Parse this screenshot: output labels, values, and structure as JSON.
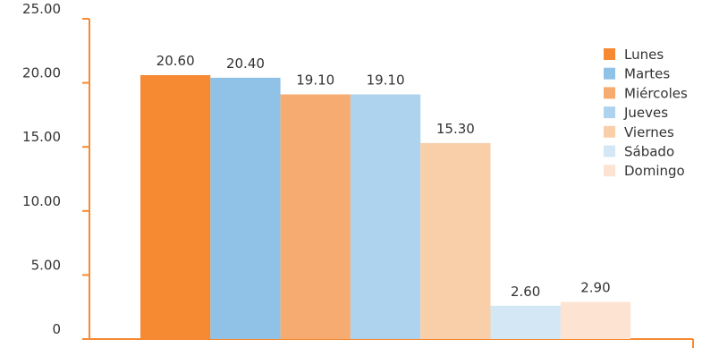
{
  "chart_data": {
    "type": "bar",
    "ylim": [
      0,
      25
    ],
    "y_ticks": [
      {
        "value": 25,
        "label": "25.00"
      },
      {
        "value": 20,
        "label": "20.00"
      },
      {
        "value": 15,
        "label": "15.00"
      },
      {
        "value": 10,
        "label": "10.00"
      },
      {
        "value": 5,
        "label": "5.00"
      },
      {
        "value": 0,
        "label": "0"
      }
    ],
    "series": [
      {
        "name": "Lunes",
        "value": 20.6,
        "label": "20.60",
        "color": "#F58A33"
      },
      {
        "name": "Martes",
        "value": 20.4,
        "label": "20.40",
        "color": "#90C2E7"
      },
      {
        "name": "Miércoles",
        "value": 19.1,
        "label": "19.10",
        "color": "#F6AC70"
      },
      {
        "name": "Jueves",
        "value": 19.1,
        "label": "19.10",
        "color": "#AED3EE"
      },
      {
        "name": "Viernes",
        "value": 15.3,
        "label": "15.30",
        "color": "#F9CFAA"
      },
      {
        "name": "Sábado",
        "value": 2.6,
        "label": "2.60",
        "color": "#D3E7F5"
      },
      {
        "name": "Domingo",
        "value": 2.9,
        "label": "2.90",
        "color": "#FCE3D2"
      }
    ],
    "axis_color": "#F58A33",
    "legend_position": "top-right",
    "grid": false
  }
}
